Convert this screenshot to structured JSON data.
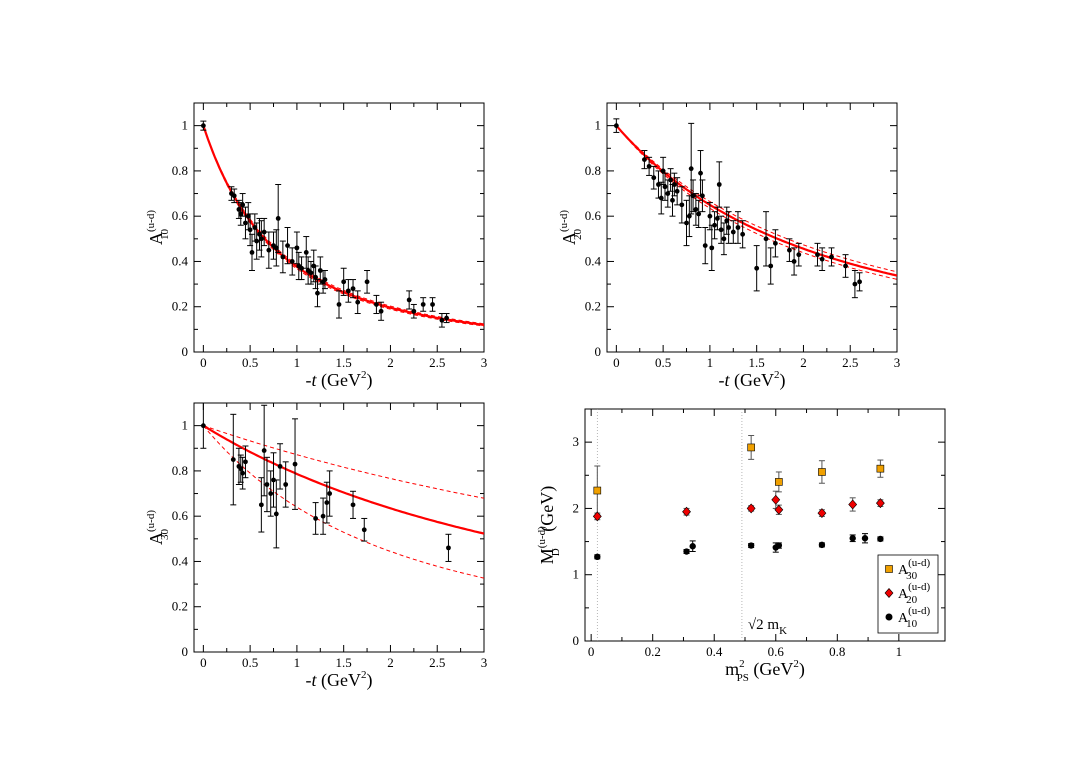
{
  "chart_data": [
    {
      "type": "scatter",
      "panel": "top-left",
      "ylabel_main": "A",
      "ylabel_sub": "10",
      "ylabel_sup": "(u-d)",
      "xlabel_pre": "-",
      "xlabel_italic": "t",
      "xlabel_unit": " (GeV",
      "xlabel_sup": "2",
      "xlabel_post": ")",
      "xlim": [
        -0.1,
        3
      ],
      "ylim": [
        0,
        1.1
      ],
      "xticks": [
        0,
        0.5,
        1,
        1.5,
        2,
        2.5,
        3
      ],
      "xtick_labels": [
        "0",
        "0.5",
        "1",
        "1.5",
        "2",
        "2.5",
        "3"
      ],
      "yticks": [
        0,
        0.2,
        0.4,
        0.6,
        0.8,
        1
      ],
      "ytick_labels": [
        "0",
        "0.2",
        "0.4",
        "0.6",
        "0.8",
        "1"
      ],
      "fit": {
        "form": "dipole",
        "mass": 1.26,
        "band_low": 1.24,
        "band_high": 1.28,
        "color": "#ff0000"
      },
      "points": [
        [
          0,
          1.0,
          0.02
        ],
        [
          0.3,
          0.7,
          0.03
        ],
        [
          0.33,
          0.69,
          0.03
        ],
        [
          0.38,
          0.63,
          0.04
        ],
        [
          0.4,
          0.61,
          0.05
        ],
        [
          0.42,
          0.65,
          0.05
        ],
        [
          0.45,
          0.57,
          0.07
        ],
        [
          0.48,
          0.6,
          0.06
        ],
        [
          0.5,
          0.54,
          0.07
        ],
        [
          0.52,
          0.44,
          0.08
        ],
        [
          0.55,
          0.55,
          0.06
        ],
        [
          0.57,
          0.49,
          0.08
        ],
        [
          0.6,
          0.52,
          0.07
        ],
        [
          0.62,
          0.5,
          0.08
        ],
        [
          0.65,
          0.53,
          0.06
        ],
        [
          0.7,
          0.45,
          0.08
        ],
        [
          0.75,
          0.47,
          0.06
        ],
        [
          0.78,
          0.46,
          0.08
        ],
        [
          0.8,
          0.59,
          0.15
        ],
        [
          0.85,
          0.42,
          0.07
        ],
        [
          0.9,
          0.47,
          0.08
        ],
        [
          0.95,
          0.4,
          0.06
        ],
        [
          1.0,
          0.46,
          0.07
        ],
        [
          1.02,
          0.38,
          0.06
        ],
        [
          1.05,
          0.37,
          0.05
        ],
        [
          1.1,
          0.44,
          0.07
        ],
        [
          1.12,
          0.36,
          0.06
        ],
        [
          1.15,
          0.35,
          0.05
        ],
        [
          1.18,
          0.38,
          0.07
        ],
        [
          1.2,
          0.33,
          0.05
        ],
        [
          1.22,
          0.26,
          0.06
        ],
        [
          1.25,
          0.36,
          0.06
        ],
        [
          1.28,
          0.31,
          0.05
        ],
        [
          1.3,
          0.32,
          0.04
        ],
        [
          1.45,
          0.21,
          0.06
        ],
        [
          1.5,
          0.31,
          0.06
        ],
        [
          1.55,
          0.27,
          0.05
        ],
        [
          1.6,
          0.28,
          0.04
        ],
        [
          1.65,
          0.22,
          0.05
        ],
        [
          1.75,
          0.31,
          0.05
        ],
        [
          1.85,
          0.21,
          0.04
        ],
        [
          1.9,
          0.18,
          0.04
        ],
        [
          2.2,
          0.23,
          0.04
        ],
        [
          2.25,
          0.18,
          0.03
        ],
        [
          2.35,
          0.21,
          0.03
        ],
        [
          2.45,
          0.21,
          0.03
        ],
        [
          2.55,
          0.14,
          0.03
        ],
        [
          2.6,
          0.15,
          0.02
        ]
      ]
    },
    {
      "type": "scatter",
      "panel": "top-right",
      "ylabel_main": "A",
      "ylabel_sub": "20",
      "ylabel_sup": "(u-d)",
      "xlabel_pre": "-",
      "xlabel_italic": "t",
      "xlabel_unit": " (GeV",
      "xlabel_sup": "2",
      "xlabel_post": ")",
      "xlim": [
        -0.1,
        3
      ],
      "ylim": [
        0,
        1.1
      ],
      "xticks": [
        0,
        0.5,
        1,
        1.5,
        2,
        2.5,
        3
      ],
      "xtick_labels": [
        "0",
        "0.5",
        "1",
        "1.5",
        "2",
        "2.5",
        "3"
      ],
      "yticks": [
        0,
        0.2,
        0.4,
        0.6,
        0.8,
        1
      ],
      "ytick_labels": [
        "0",
        "0.2",
        "0.4",
        "0.6",
        "0.8",
        "1"
      ],
      "fit": {
        "form": "dipole",
        "mass": 2.04,
        "band_low": 1.98,
        "band_high": 2.1,
        "color": "#ff0000"
      },
      "points": [
        [
          0,
          1.0,
          0.03
        ],
        [
          0.3,
          0.85,
          0.04
        ],
        [
          0.35,
          0.82,
          0.04
        ],
        [
          0.4,
          0.77,
          0.05
        ],
        [
          0.45,
          0.74,
          0.06
        ],
        [
          0.48,
          0.68,
          0.07
        ],
        [
          0.5,
          0.8,
          0.06
        ],
        [
          0.52,
          0.73,
          0.06
        ],
        [
          0.55,
          0.7,
          0.06
        ],
        [
          0.58,
          0.76,
          0.05
        ],
        [
          0.6,
          0.67,
          0.07
        ],
        [
          0.62,
          0.74,
          0.05
        ],
        [
          0.65,
          0.71,
          0.06
        ],
        [
          0.7,
          0.65,
          0.08
        ],
        [
          0.75,
          0.57,
          0.1
        ],
        [
          0.78,
          0.6,
          0.09
        ],
        [
          0.8,
          0.81,
          0.2
        ],
        [
          0.82,
          0.69,
          0.07
        ],
        [
          0.85,
          0.63,
          0.07
        ],
        [
          0.88,
          0.61,
          0.06
        ],
        [
          0.9,
          0.79,
          0.1
        ],
        [
          0.92,
          0.69,
          0.07
        ],
        [
          0.95,
          0.47,
          0.08
        ],
        [
          1.0,
          0.6,
          0.06
        ],
        [
          1.02,
          0.46,
          0.1
        ],
        [
          1.05,
          0.56,
          0.06
        ],
        [
          1.08,
          0.59,
          0.05
        ],
        [
          1.1,
          0.74,
          0.1
        ],
        [
          1.12,
          0.54,
          0.06
        ],
        [
          1.15,
          0.5,
          0.07
        ],
        [
          1.18,
          0.58,
          0.06
        ],
        [
          1.2,
          0.55,
          0.07
        ],
        [
          1.25,
          0.53,
          0.05
        ],
        [
          1.3,
          0.55,
          0.07
        ],
        [
          1.35,
          0.52,
          0.06
        ],
        [
          1.5,
          0.37,
          0.1
        ],
        [
          1.6,
          0.5,
          0.12
        ],
        [
          1.65,
          0.38,
          0.08
        ],
        [
          1.7,
          0.48,
          0.06
        ],
        [
          1.85,
          0.45,
          0.05
        ],
        [
          1.9,
          0.4,
          0.06
        ],
        [
          1.95,
          0.43,
          0.05
        ],
        [
          2.15,
          0.43,
          0.05
        ],
        [
          2.2,
          0.41,
          0.05
        ],
        [
          2.3,
          0.42,
          0.04
        ],
        [
          2.45,
          0.38,
          0.05
        ],
        [
          2.55,
          0.3,
          0.06
        ],
        [
          2.6,
          0.31,
          0.04
        ]
      ]
    },
    {
      "type": "scatter",
      "panel": "bottom-left",
      "ylabel_main": "A",
      "ylabel_sub": "30",
      "ylabel_sup": "(u-d)",
      "xlabel_pre": "-",
      "xlabel_italic": "t",
      "xlabel_unit": " (GeV",
      "xlabel_sup": "2",
      "xlabel_post": ")",
      "xlim": [
        -0.1,
        3
      ],
      "ylim": [
        0,
        1.1
      ],
      "xticks": [
        0,
        0.5,
        1,
        1.5,
        2,
        2.5,
        3
      ],
      "xtick_labels": [
        "0",
        "0.5",
        "1",
        "1.5",
        "2",
        "2.5",
        "3"
      ],
      "yticks": [
        0,
        0.2,
        0.4,
        0.6,
        0.8,
        1
      ],
      "ytick_labels": [
        "0",
        "0.2",
        "0.4",
        "0.6",
        "0.8",
        "1"
      ],
      "fit": {
        "form": "dipole",
        "mass": 2.8,
        "band_low": 2.0,
        "band_high": 3.75,
        "color": "#ff0000"
      },
      "points": [
        [
          0,
          1.0,
          0.1
        ],
        [
          0.32,
          0.85,
          0.2
        ],
        [
          0.38,
          0.82,
          0.08
        ],
        [
          0.4,
          0.81,
          0.06
        ],
        [
          0.42,
          0.79,
          0.07
        ],
        [
          0.45,
          0.84,
          0.07
        ],
        [
          0.62,
          0.65,
          0.12
        ],
        [
          0.65,
          0.89,
          0.2
        ],
        [
          0.68,
          0.74,
          0.12
        ],
        [
          0.72,
          0.7,
          0.1
        ],
        [
          0.75,
          0.76,
          0.12
        ],
        [
          0.78,
          0.61,
          0.15
        ],
        [
          0.82,
          0.82,
          0.1
        ],
        [
          0.88,
          0.74,
          0.1
        ],
        [
          0.98,
          0.83,
          0.2
        ],
        [
          1.2,
          0.59,
          0.07
        ],
        [
          1.28,
          0.6,
          0.08
        ],
        [
          1.32,
          0.66,
          0.09
        ],
        [
          1.35,
          0.7,
          0.1
        ],
        [
          1.6,
          0.65,
          0.06
        ],
        [
          1.72,
          0.54,
          0.05
        ],
        [
          2.62,
          0.46,
          0.06
        ]
      ]
    },
    {
      "type": "scatter",
      "panel": "bottom-right",
      "ylabel_main": "M",
      "ylabel_sub": "D",
      "ylabel_sup": "(u-d)",
      "ylabel_unit": " (GeV)",
      "xlabel_main": "m",
      "xlabel_sub": "PS",
      "xlabel_sup": "2",
      "xlabel_unit": " (GeV",
      "xlabel_sup2": "2",
      "xlabel_post": ")",
      "xlim": [
        -0.02,
        1.15
      ],
      "ylim": [
        0,
        3.5
      ],
      "xticks": [
        0,
        0.2,
        0.4,
        0.6,
        0.8,
        1
      ],
      "xtick_labels": [
        "0",
        "0.2",
        "0.4",
        "0.6",
        "0.8",
        "1"
      ],
      "yticks": [
        0,
        1,
        2,
        3
      ],
      "ytick_labels": [
        "0",
        "1",
        "2",
        "3"
      ],
      "vlines": [
        0.02,
        0.49
      ],
      "annotation": {
        "main": "√2 m",
        "sub": "K"
      },
      "legend_position": "bottom-right",
      "series": [
        {
          "name_main": "A",
          "name_sub": "30",
          "name_sup": "(u-d)",
          "marker": "square",
          "color": "#f0a000",
          "points": [
            [
              0.02,
              2.27,
              0.37
            ],
            [
              0.52,
              2.92,
              0.18
            ],
            [
              0.61,
              2.4,
              0.15
            ],
            [
              0.75,
              2.55,
              0.17
            ],
            [
              0.94,
              2.6,
              0.13
            ]
          ]
        },
        {
          "name_main": "A",
          "name_sub": "20",
          "name_sup": "(u-d)",
          "marker": "diamond",
          "color": "#ee0000",
          "points": [
            [
              0.02,
              1.88,
              0.05
            ],
            [
              0.31,
              1.95,
              0.05
            ],
            [
              0.52,
              2.0,
              0.04
            ],
            [
              0.6,
              2.13,
              0.13
            ],
            [
              0.61,
              1.98,
              0.07
            ],
            [
              0.75,
              1.93,
              0.05
            ],
            [
              0.85,
              2.06,
              0.1
            ],
            [
              0.94,
              2.08,
              0.05
            ]
          ]
        },
        {
          "name_main": "A",
          "name_sub": "10",
          "name_sup": "(u-d)",
          "marker": "circle",
          "color": "#000000",
          "points": [
            [
              0.02,
              1.27,
              0.03
            ],
            [
              0.31,
              1.35,
              0.03
            ],
            [
              0.33,
              1.43,
              0.08
            ],
            [
              0.52,
              1.44,
              0.03
            ],
            [
              0.6,
              1.41,
              0.07
            ],
            [
              0.61,
              1.44,
              0.04
            ],
            [
              0.75,
              1.45,
              0.03
            ],
            [
              0.85,
              1.55,
              0.05
            ],
            [
              0.89,
              1.55,
              0.07
            ],
            [
              0.94,
              1.54,
              0.03
            ]
          ]
        }
      ]
    }
  ]
}
